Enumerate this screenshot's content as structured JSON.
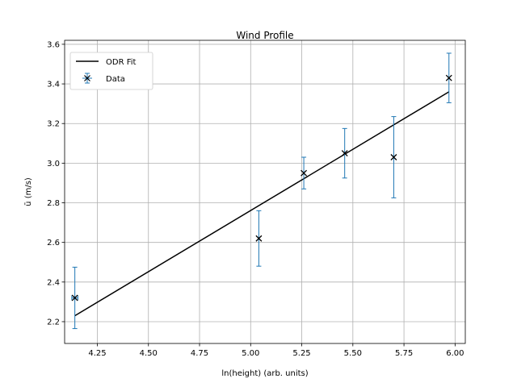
{
  "chart_data": {
    "type": "scatter",
    "title": "Wind Profile",
    "xlabel": "ln(height) (arb. units)",
    "ylabel": "ū (m/s)",
    "xlim": [
      4.09,
      6.05
    ],
    "ylim": [
      2.09,
      3.62
    ],
    "xticks": [
      "4.25",
      "4.50",
      "4.75",
      "5.00",
      "5.25",
      "5.50",
      "5.75",
      "6.00"
    ],
    "yticks": [
      "2.2",
      "2.4",
      "2.6",
      "2.8",
      "3.0",
      "3.2",
      "3.4",
      "3.6"
    ],
    "grid": true,
    "legend_position": "top-left",
    "series": [
      {
        "name": "Data",
        "kind": "errorbar",
        "marker": "x",
        "x": [
          4.14,
          5.04,
          5.26,
          5.46,
          5.7,
          5.97
        ],
        "y": [
          2.32,
          2.62,
          2.95,
          3.05,
          3.03,
          3.43
        ],
        "yerr": [
          0.155,
          0.14,
          0.08,
          0.125,
          0.205,
          0.125
        ],
        "xerr": [
          0.015,
          0.0,
          0.0,
          0.0,
          0.0,
          0.0
        ]
      },
      {
        "name": "ODR Fit",
        "kind": "line",
        "x": [
          4.14,
          5.97
        ],
        "y": [
          2.23,
          3.36
        ]
      }
    ],
    "colors": {
      "data": "#1f77b4",
      "marker": "#000000",
      "fit": "#000000",
      "grid": "#b0b0b0"
    }
  }
}
